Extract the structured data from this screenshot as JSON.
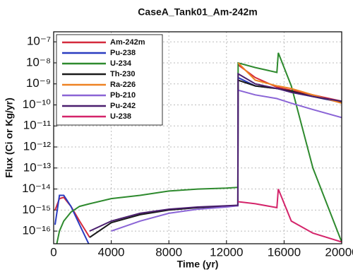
{
  "chart_data": {
    "type": "line",
    "title": "CaseA_Tank01_Am-242m",
    "x_label": "Time (yr)",
    "y_label": "Flux (Ci or Kg/yr)",
    "x": [
      100,
      400,
      700,
      1200,
      1800,
      2500,
      4000,
      6000,
      8000,
      10000,
      12000,
      12790,
      12810,
      14000,
      15500,
      15600,
      16500,
      18000,
      20000
    ],
    "series": [
      {
        "name": "Am-242m",
        "color": "#d42a3c",
        "values": [
          1e-15,
          3.5e-15,
          4e-15,
          1.5e-15,
          3e-16,
          5e-17,
          null,
          null,
          null,
          null,
          null,
          null,
          8e-09,
          2e-09,
          7e-10,
          6.8e-10,
          5e-10,
          3e-10,
          1.5e-10
        ]
      },
      {
        "name": "Pu-238",
        "color": "#2a3cc0",
        "values": [
          2e-16,
          5e-15,
          5e-15,
          1.5e-15,
          2e-16,
          2e-17,
          null,
          null,
          null,
          null,
          null,
          null,
          2e-09,
          8e-10,
          6e-10,
          5.9e-10,
          4e-10,
          2.5e-10,
          1.3e-10
        ]
      },
      {
        "name": "U-234",
        "color": "#2e8a2e",
        "values": [
          1e-17,
          1e-16,
          3e-16,
          8e-16,
          1.5e-15,
          2e-15,
          3.5e-15,
          5e-15,
          8e-15,
          1e-14,
          1.1e-14,
          1.2e-14,
          1e-08,
          6e-09,
          3.5e-09,
          3e-08,
          8e-10,
          1e-13,
          3e-17
        ]
      },
      {
        "name": "Th-230",
        "color": "#1a1a1a",
        "values": [
          null,
          null,
          null,
          null,
          null,
          5e-17,
          2.5e-16,
          6e-16,
          1e-15,
          1.3e-15,
          1.5e-15,
          1.6e-15,
          1.5e-09,
          8e-10,
          6e-10,
          5.9e-10,
          4.5e-10,
          2.5e-10,
          1.4e-10
        ]
      },
      {
        "name": "Ra-226",
        "color": "#ee8222",
        "values": [
          null,
          null,
          null,
          null,
          null,
          null,
          null,
          null,
          null,
          null,
          null,
          null,
          1e-08,
          1.5e-09,
          8e-10,
          7.9e-10,
          6e-10,
          3e-10,
          1.2e-10
        ]
      },
      {
        "name": "Pb-210",
        "color": "#8a64d6",
        "values": [
          null,
          null,
          null,
          null,
          null,
          null,
          1e-16,
          3e-16,
          7e-16,
          1.1e-15,
          1.4e-15,
          1.6e-15,
          5e-10,
          3e-10,
          2e-10,
          1.9e-10,
          1.2e-10,
          6e-11,
          2.5e-11
        ]
      },
      {
        "name": "Pu-242",
        "color": "#4a1e6e",
        "values": [
          null,
          null,
          null,
          null,
          null,
          1e-16,
          3e-16,
          7e-16,
          1.1e-15,
          1.4e-15,
          1.6e-15,
          1.7e-15,
          3e-09,
          1e-09,
          6e-10,
          5.9e-10,
          4e-10,
          2.5e-10,
          1.5e-10
        ]
      },
      {
        "name": "U-238",
        "color": "#d4246a",
        "values": [
          null,
          null,
          null,
          null,
          null,
          null,
          null,
          null,
          null,
          null,
          null,
          null,
          2.5e-15,
          2e-15,
          1.3e-15,
          1e-14,
          3e-16,
          8e-17,
          3e-17
        ]
      }
    ],
    "xlim": [
      0,
      20000
    ],
    "xticks": [
      0,
      4000,
      8000,
      12000,
      16000,
      20000
    ],
    "ylim": [
      2.5e-17,
      3e-07
    ],
    "log_y": true,
    "yticks": [
      {
        "value": 1e-16,
        "label": "10⁻¹⁶"
      },
      {
        "value": 1e-15,
        "label": "10⁻¹⁵"
      },
      {
        "value": 1e-14,
        "label": "10⁻¹⁴"
      },
      {
        "value": 1e-13,
        "label": "10⁻¹³"
      },
      {
        "value": 1e-12,
        "label": "10⁻¹²"
      },
      {
        "value": 1e-11,
        "label": "10⁻¹¹"
      },
      {
        "value": 1e-10,
        "label": "10⁻¹⁰"
      },
      {
        "value": 1e-09,
        "label": "10⁻⁹"
      },
      {
        "value": 1e-08,
        "label": "10⁻⁸"
      },
      {
        "value": 1e-07,
        "label": "10⁻⁷"
      }
    ],
    "grid": true,
    "legend_position": "upper-left"
  }
}
